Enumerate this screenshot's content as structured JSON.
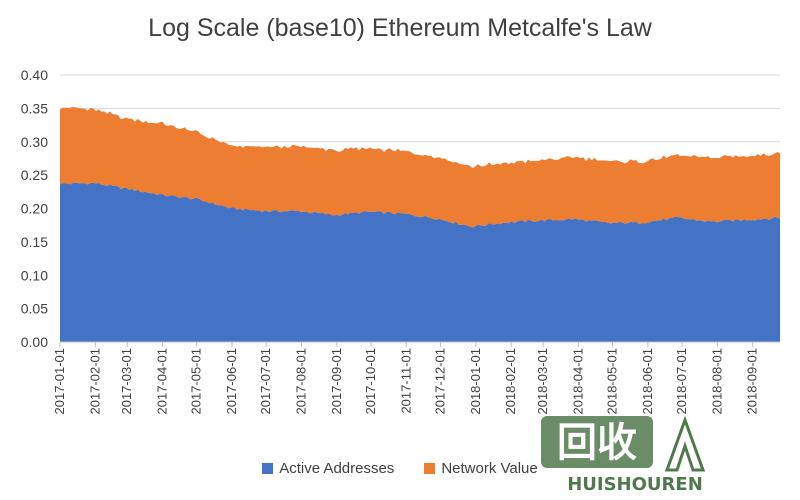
{
  "chart_data": {
    "type": "area",
    "stacked": true,
    "title": "Log Scale (base10) Ethereum Metcalfe's Law",
    "xlabel": "",
    "ylabel": "",
    "ylim": [
      0,
      0.4
    ],
    "yticks": [
      "0.00",
      "0.05",
      "0.10",
      "0.15",
      "0.20",
      "0.25",
      "0.30",
      "0.35",
      "0.40"
    ],
    "grid": true,
    "legend_position": "bottom",
    "x": [
      "2017-01-01",
      "2017-02-01",
      "2017-03-01",
      "2017-04-01",
      "2017-05-01",
      "2017-06-01",
      "2017-07-01",
      "2017-08-01",
      "2017-09-01",
      "2017-10-01",
      "2017-11-01",
      "2017-12-01",
      "2018-01-01",
      "2018-02-01",
      "2018-03-01",
      "2018-04-01",
      "2018-05-01",
      "2018-06-01",
      "2018-07-01",
      "2018-08-01",
      "2018-09-01",
      "2018-09-25"
    ],
    "xtick_labels": [
      "2017-01-01",
      "2017-02-01",
      "2017-03-01",
      "2017-04-01",
      "2017-05-01",
      "2017-06-01",
      "2017-07-01",
      "2017-08-01",
      "2017-09-01",
      "2017-10-01",
      "2017-11-01",
      "2017-12-01",
      "2018-01-01",
      "2018-02-01",
      "2018-03-01",
      "2018-04-01",
      "2018-05-01",
      "2018-06-01",
      "2018-07-01",
      "2018-08-01",
      "2018-09-01"
    ],
    "series": [
      {
        "name": "Active Addresses",
        "color": "#4472c4",
        "values": [
          0.237,
          0.238,
          0.229,
          0.22,
          0.214,
          0.2,
          0.196,
          0.196,
          0.19,
          0.195,
          0.192,
          0.185,
          0.173,
          0.179,
          0.182,
          0.184,
          0.178,
          0.179,
          0.186,
          0.18,
          0.183,
          0.186
        ]
      },
      {
        "name": "Network Value",
        "color": "#ed7d31",
        "values": [
          0.115,
          0.11,
          0.105,
          0.107,
          0.1,
          0.093,
          0.096,
          0.097,
          0.097,
          0.095,
          0.094,
          0.093,
          0.09,
          0.089,
          0.09,
          0.093,
          0.092,
          0.092,
          0.093,
          0.096,
          0.096,
          0.097
        ]
      }
    ]
  },
  "watermark": {
    "text_main": "回收",
    "text_sub": "HUISHOUREN"
  }
}
